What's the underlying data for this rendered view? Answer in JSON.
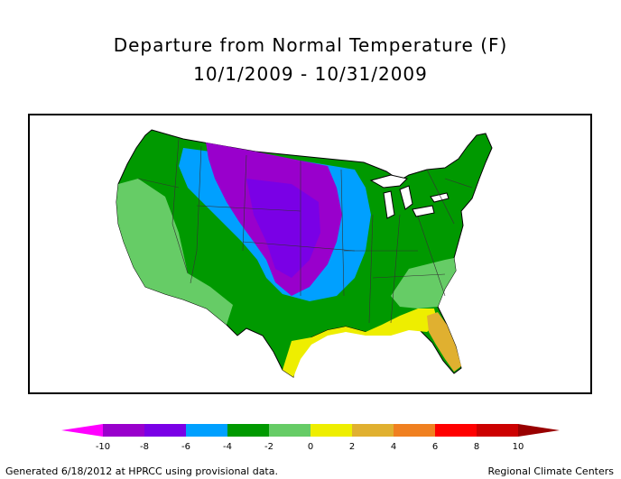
{
  "title": "Departure from Normal Temperature (F)",
  "period": "10/1/2009 - 10/31/2009",
  "legend": {
    "ticks": [
      "-10",
      "-8",
      "-6",
      "-4",
      "-2",
      "0",
      "2",
      "4",
      "6",
      "8",
      "10"
    ],
    "bins": [
      {
        "min": -10,
        "max": -8,
        "color": "#9900cc"
      },
      {
        "min": -8,
        "max": -6,
        "color": "#7a00e6"
      },
      {
        "min": -6,
        "max": -4,
        "color": "#00a0ff"
      },
      {
        "min": -4,
        "max": -2,
        "color": "#009900"
      },
      {
        "min": -2,
        "max": 0,
        "color": "#66cc66"
      },
      {
        "min": 0,
        "max": 2,
        "color": "#eeee00"
      },
      {
        "min": 2,
        "max": 4,
        "color": "#e0b030"
      },
      {
        "min": 4,
        "max": 6,
        "color": "#f08020"
      },
      {
        "min": 6,
        "max": 8,
        "color": "#ff0000"
      },
      {
        "min": 8,
        "max": 10,
        "color": "#cc0000"
      }
    ],
    "below_color": "#ff00ff",
    "above_color": "#990000"
  },
  "footer": {
    "left": "Generated 6/18/2012 at HPRCC using provisional data.",
    "right": "Regional Climate Centers"
  }
}
